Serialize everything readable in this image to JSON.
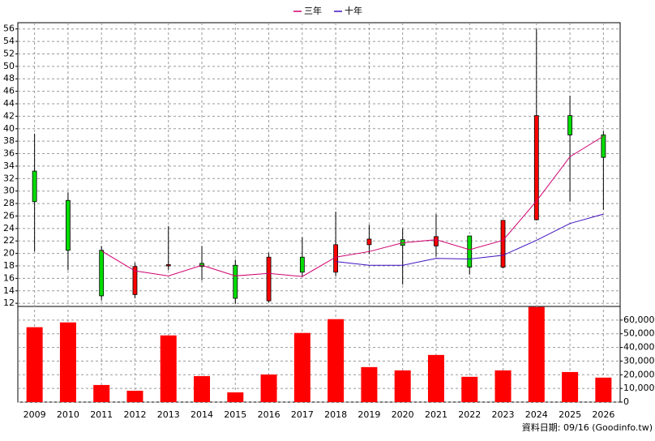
{
  "chart_data": {
    "type": "candlestick",
    "categories": [
      "2009",
      "2010",
      "2011",
      "2012",
      "2013",
      "2014",
      "2015",
      "2016",
      "2017",
      "2018",
      "2019",
      "2020",
      "2021",
      "2022",
      "2023",
      "2024",
      "2025",
      "2026"
    ],
    "open": [
      33.2,
      28.5,
      20.5,
      13.4,
      18.0,
      18.4,
      18.1,
      12.4,
      19.4,
      17.0,
      21.4,
      22.2,
      21.2,
      22.8,
      17.8,
      25.4,
      42.1,
      39.0
    ],
    "high": [
      39.2,
      29.8,
      21.2,
      18.5,
      24.4,
      21.2,
      19.0,
      20.1,
      22.6,
      26.7,
      24.6,
      24.0,
      26.3,
      22.8,
      25.3,
      56.0,
      45.3,
      39.6
    ],
    "low": [
      20.3,
      17.3,
      12.5,
      12.8,
      17.3,
      15.7,
      11.9,
      12.1,
      16.3,
      16.4,
      19.9,
      15.0,
      19.5,
      16.6,
      17.6,
      25.3,
      28.3,
      27.0
    ],
    "close": [
      28.3,
      20.5,
      13.2,
      17.9,
      18.2,
      17.9,
      12.8,
      19.4,
      17.0,
      21.4,
      22.3,
      21.3,
      22.7,
      17.8,
      25.3,
      42.1,
      39.0,
      35.4
    ],
    "up_color": "#ff0000",
    "down_color": "#00dd00",
    "ylim": [
      11.5,
      57
    ],
    "yticks": [
      12,
      14,
      16,
      18,
      20,
      22,
      24,
      26,
      28,
      30,
      32,
      34,
      36,
      38,
      40,
      42,
      44,
      46,
      48,
      50,
      52,
      54,
      56
    ],
    "grid": true,
    "series": [
      {
        "name": "三年",
        "color": "#d00070",
        "values": [
          null,
          null,
          20.4,
          17.2,
          16.4,
          18.1,
          16.4,
          16.8,
          16.3,
          19.4,
          20.3,
          21.7,
          22.2,
          20.6,
          22.1,
          28.4,
          35.5,
          38.8
        ]
      },
      {
        "name": "十年",
        "color": "#4010c0",
        "values": [
          null,
          null,
          null,
          null,
          null,
          null,
          null,
          null,
          null,
          18.7,
          18.1,
          18.1,
          19.2,
          19.1,
          19.7,
          22.1,
          24.8,
          26.3
        ]
      }
    ],
    "volume": {
      "color": "#ff0000",
      "values": [
        54800,
        58300,
        12500,
        8300,
        48800,
        19000,
        7100,
        20200,
        50600,
        60700,
        25600,
        23200,
        34500,
        18500,
        23200,
        69600,
        22000,
        17900
      ],
      "ylim": [
        0,
        70000
      ],
      "yticks": [
        0,
        {
          "value": 10000,
          "label": "10,000"
        },
        {
          "value": 20000,
          "label": "20,000"
        },
        {
          "value": 30000,
          "label": "30,000"
        },
        {
          "value": 40000,
          "label": "40,000"
        },
        {
          "value": 50000,
          "label": "50,000"
        },
        {
          "value": 60000,
          "label": "60,000"
        }
      ]
    },
    "source": "資料日期: 09/16 (Goodinfo.tw)"
  }
}
